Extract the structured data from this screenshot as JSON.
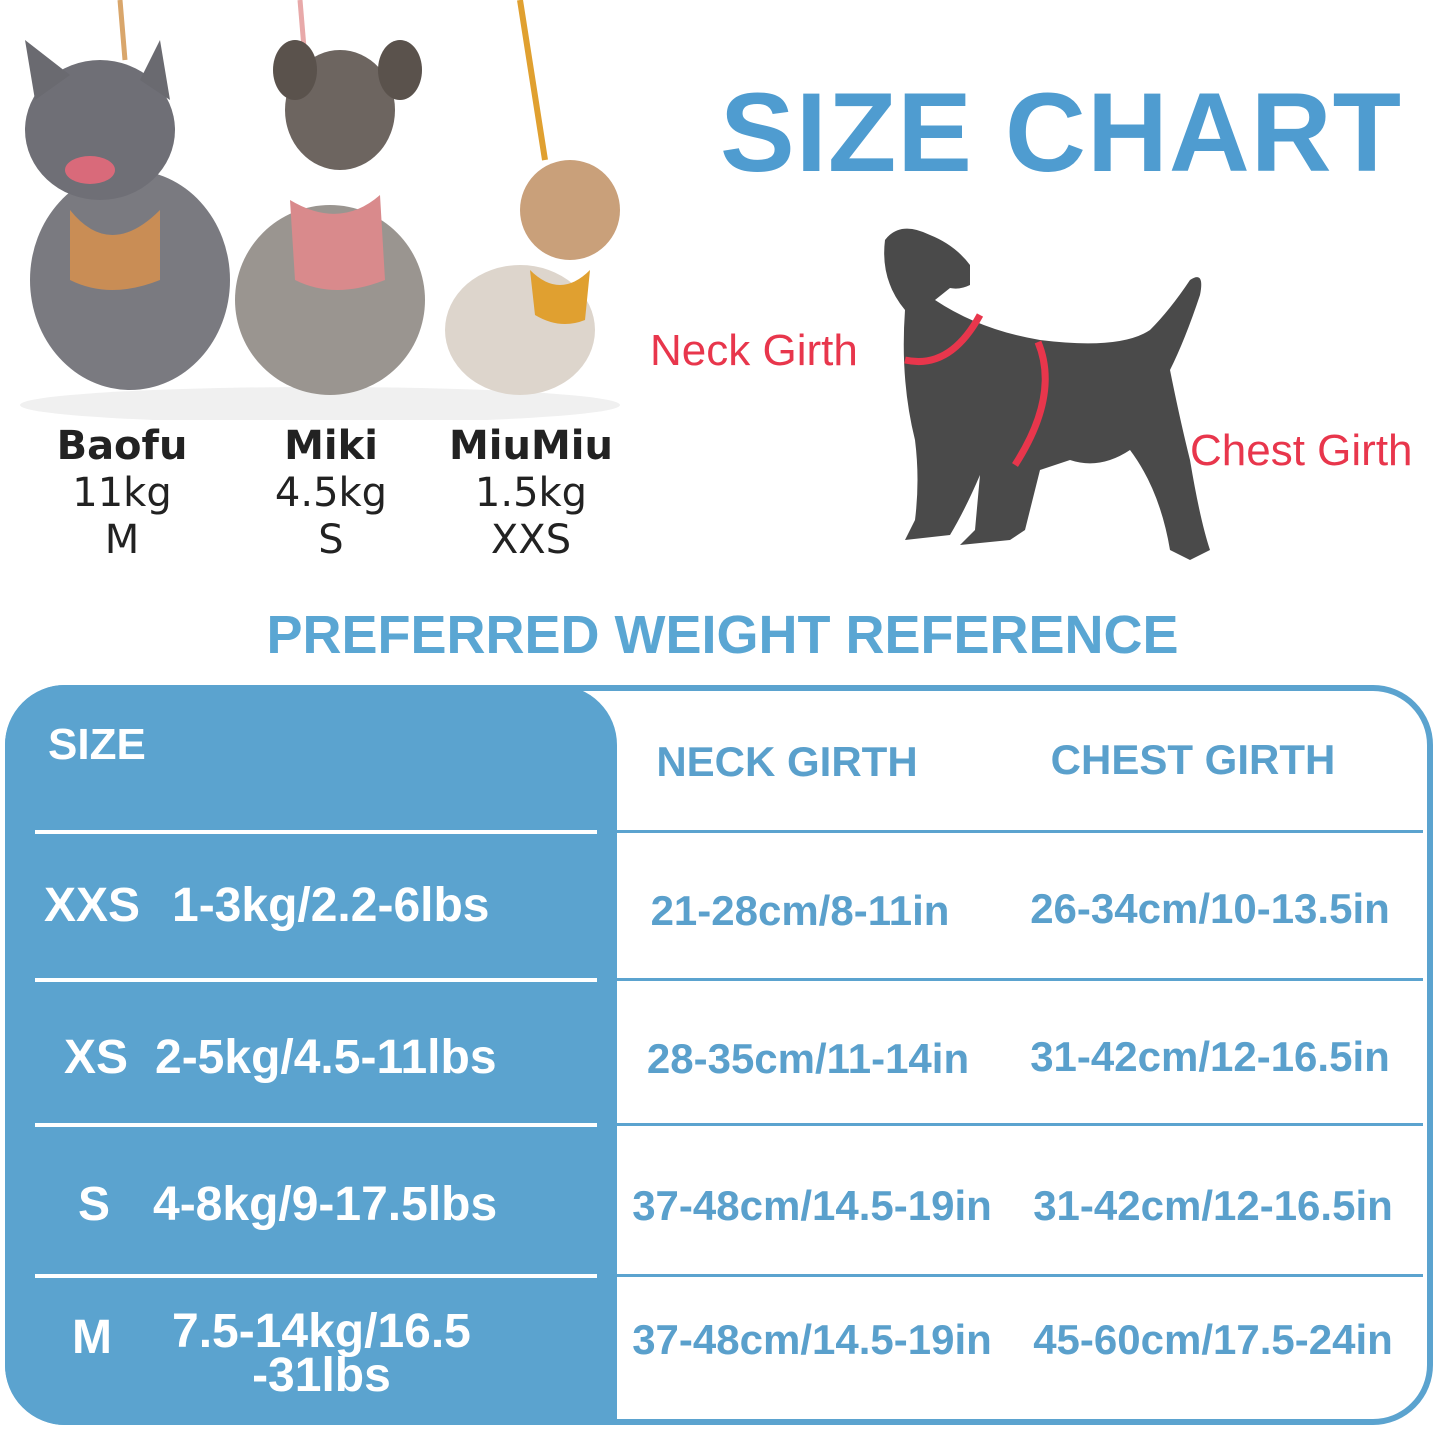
{
  "title": "SIZE CHART",
  "subtitle": "PREFERRED WEIGHT REFERENCE",
  "dogs": [
    {
      "name": "Baofu",
      "weight": "11kg",
      "size": "M"
    },
    {
      "name": "Miki",
      "weight": "4.5kg",
      "size": "S"
    },
    {
      "name": "MiuMiu",
      "weight": "1.5kg",
      "size": "XXS"
    }
  ],
  "diagram": {
    "neck_label": "Neck Girth",
    "chest_label": "Chest Girth",
    "accent": "#e8364c",
    "silhouette": "#4a4a4a"
  },
  "table": {
    "headers": {
      "size": "SIZE",
      "neck": "NECK GIRTH",
      "chest": "CHEST GIRTH"
    },
    "rows": [
      {
        "size": "XXS",
        "weight": "1-3kg/2.2-6lbs",
        "neck": "21-28cm/8-11in",
        "chest": "26-34cm/10-13.5in"
      },
      {
        "size": "XS",
        "weight": "2-5kg/4.5-11lbs",
        "neck": "28-35cm/11-14in",
        "chest": "31-42cm/12-16.5in"
      },
      {
        "size": "S",
        "weight": "4-8kg/9-17.5lbs",
        "neck": "37-48cm/14.5-19in",
        "chest": "31-42cm/12-16.5in"
      },
      {
        "size": "M",
        "weight": "7.5-14kg/16.5\n-31lbs",
        "neck": "37-48cm/14.5-19in",
        "chest": "45-60cm/17.5-24in"
      }
    ]
  },
  "colors": {
    "brand_blue": "#5ba3cf",
    "title_blue": "#4f9cd0"
  }
}
